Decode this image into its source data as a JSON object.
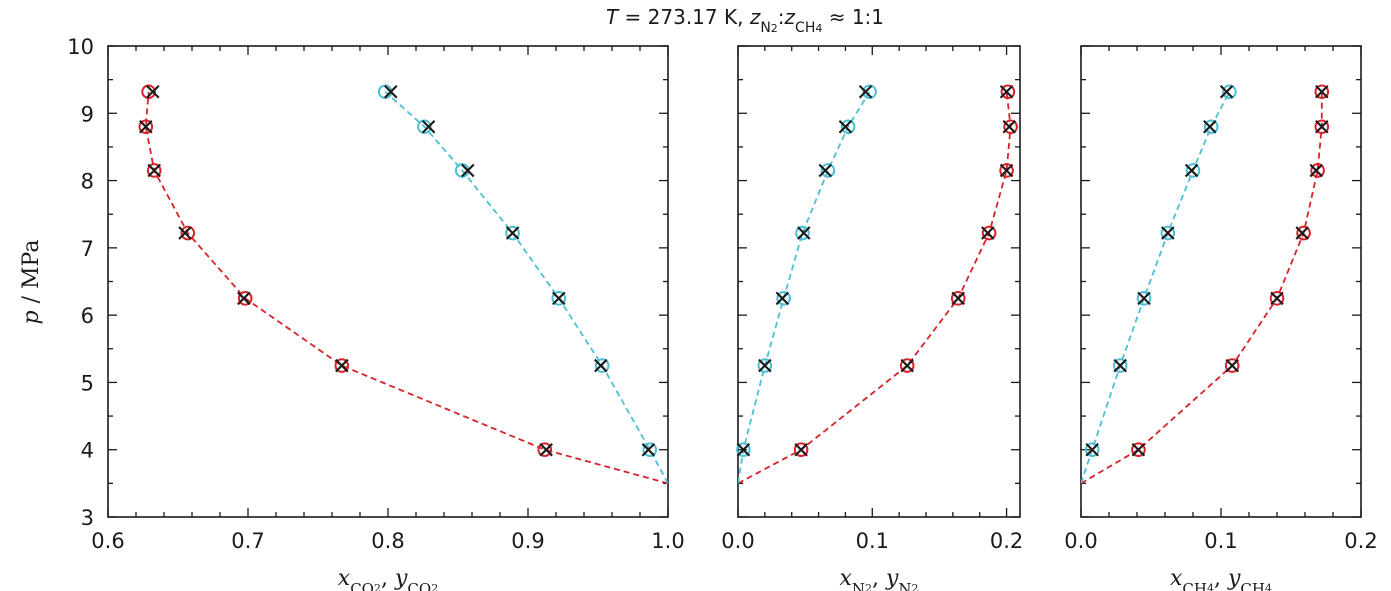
{
  "figure": {
    "title": {
      "T": "T",
      "eq": " = 273.17 K, ",
      "z": "z",
      "n2": "N",
      "n2sub": "2",
      "colon": ":",
      "z2": "z",
      "ch4": "CH",
      "ch4sub": "4",
      "approx": " ≈ 1:1"
    },
    "ylabel": {
      "p": "p",
      "unit": " / MPa"
    }
  },
  "colors": {
    "liquid": "#d6222a",
    "vapor": "#4bbfd4",
    "marker_x": "#1a1a1a"
  },
  "chart_data": [
    {
      "type": "line",
      "panel": "CO2",
      "xlabel": {
        "x": "x",
        "xsub": "CO",
        "xsub2": "2",
        "sep": ", ",
        "y": "y",
        "ysub": "CO",
        "ysub2": "2"
      },
      "xlim": [
        0.6,
        1.0
      ],
      "ylim": [
        3,
        10
      ],
      "xticks": [
        "0.6",
        "0.7",
        "0.8",
        "0.9",
        "1.0"
      ],
      "yticks": [
        "3",
        "4",
        "5",
        "6",
        "7",
        "8",
        "9",
        "10"
      ],
      "series": [
        {
          "role": "liquid",
          "line": [
            [
              1.0,
              3.5
            ],
            [
              0.912,
              4.0
            ],
            [
              0.767,
              5.25
            ],
            [
              0.698,
              6.25
            ],
            [
              0.657,
              7.22
            ],
            [
              0.633,
              8.15
            ],
            [
              0.627,
              8.8
            ],
            [
              0.629,
              9.32
            ]
          ],
          "circles": [
            [
              0.912,
              4.0
            ],
            [
              0.767,
              5.25
            ],
            [
              0.698,
              6.25
            ],
            [
              0.657,
              7.22
            ],
            [
              0.633,
              8.15
            ],
            [
              0.627,
              8.8
            ],
            [
              0.629,
              9.32
            ]
          ],
          "crosses": [
            [
              0.913,
              4.0
            ],
            [
              0.767,
              5.25
            ],
            [
              0.697,
              6.25
            ],
            [
              0.655,
              7.22
            ],
            [
              0.633,
              8.15
            ],
            [
              0.627,
              8.8
            ],
            [
              0.632,
              9.32
            ]
          ]
        },
        {
          "role": "vapor",
          "line": [
            [
              1.0,
              3.5
            ],
            [
              0.987,
              4.0
            ],
            [
              0.953,
              5.25
            ],
            [
              0.922,
              6.25
            ],
            [
              0.889,
              7.22
            ],
            [
              0.853,
              8.15
            ],
            [
              0.826,
              8.8
            ],
            [
              0.798,
              9.32
            ]
          ],
          "circles": [
            [
              0.987,
              4.0
            ],
            [
              0.953,
              5.25
            ],
            [
              0.922,
              6.25
            ],
            [
              0.889,
              7.22
            ],
            [
              0.853,
              8.15
            ],
            [
              0.826,
              8.8
            ],
            [
              0.798,
              9.32
            ]
          ],
          "crosses": [
            [
              0.986,
              4.0
            ],
            [
              0.952,
              5.25
            ],
            [
              0.922,
              6.25
            ],
            [
              0.889,
              7.22
            ],
            [
              0.857,
              8.15
            ],
            [
              0.829,
              8.8
            ],
            [
              0.802,
              9.32
            ]
          ]
        }
      ]
    },
    {
      "type": "line",
      "panel": "N2",
      "xlabel": {
        "x": "x",
        "xsub": "N",
        "xsub2": "2",
        "sep": ", ",
        "y": "y",
        "ysub": "N",
        "ysub2": "2"
      },
      "xlim": [
        0.0,
        0.21
      ],
      "ylim": [
        3,
        10
      ],
      "xticks": [
        "0.0",
        "0.1",
        "0.2"
      ],
      "xtickvals": [
        0.0,
        0.1,
        0.2
      ],
      "yticks": [],
      "series": [
        {
          "role": "liquid",
          "line": [
            [
              0.0,
              3.5
            ],
            [
              0.047,
              4.0
            ],
            [
              0.126,
              5.25
            ],
            [
              0.164,
              6.25
            ],
            [
              0.187,
              7.22
            ],
            [
              0.2,
              8.15
            ],
            [
              0.203,
              8.8
            ],
            [
              0.2,
              9.32
            ]
          ],
          "circles": [
            [
              0.047,
              4.0
            ],
            [
              0.126,
              5.25
            ],
            [
              0.164,
              6.25
            ],
            [
              0.187,
              7.22
            ],
            [
              0.2,
              8.15
            ],
            [
              0.203,
              8.8
            ],
            [
              0.201,
              9.32
            ]
          ],
          "crosses": [
            [
              0.047,
              4.0
            ],
            [
              0.126,
              5.25
            ],
            [
              0.164,
              6.25
            ],
            [
              0.186,
              7.22
            ],
            [
              0.2,
              8.15
            ],
            [
              0.202,
              8.8
            ],
            [
              0.2,
              9.32
            ]
          ]
        },
        {
          "role": "vapor",
          "line": [
            [
              0.0,
              3.5
            ],
            [
              0.004,
              4.0
            ],
            [
              0.02,
              5.25
            ],
            [
              0.034,
              6.25
            ],
            [
              0.048,
              7.22
            ],
            [
              0.067,
              8.15
            ],
            [
              0.082,
              8.8
            ],
            [
              0.098,
              9.32
            ]
          ],
          "circles": [
            [
              0.004,
              4.0
            ],
            [
              0.02,
              5.25
            ],
            [
              0.034,
              6.25
            ],
            [
              0.048,
              7.22
            ],
            [
              0.067,
              8.15
            ],
            [
              0.082,
              8.8
            ],
            [
              0.098,
              9.32
            ]
          ],
          "crosses": [
            [
              0.004,
              4.0
            ],
            [
              0.02,
              5.25
            ],
            [
              0.033,
              6.25
            ],
            [
              0.049,
              7.22
            ],
            [
              0.065,
              8.15
            ],
            [
              0.08,
              8.8
            ],
            [
              0.095,
              9.32
            ]
          ]
        }
      ]
    },
    {
      "type": "line",
      "panel": "CH4",
      "xlabel": {
        "x": "x",
        "xsub": "CH",
        "xsub2": "4",
        "sep": ", ",
        "y": "y",
        "ysub": "CH",
        "ysub2": "4"
      },
      "xlim": [
        0.0,
        0.2
      ],
      "ylim": [
        3,
        10
      ],
      "xticks": [
        "0.0",
        "0.1",
        "0.2"
      ],
      "xtickvals": [
        0.0,
        0.1,
        0.2
      ],
      "yticks": [],
      "series": [
        {
          "role": "liquid",
          "line": [
            [
              0.0,
              3.5
            ],
            [
              0.041,
              4.0
            ],
            [
              0.108,
              5.25
            ],
            [
              0.14,
              6.25
            ],
            [
              0.159,
              7.22
            ],
            [
              0.169,
              8.15
            ],
            [
              0.172,
              8.8
            ],
            [
              0.172,
              9.32
            ]
          ],
          "circles": [
            [
              0.041,
              4.0
            ],
            [
              0.108,
              5.25
            ],
            [
              0.14,
              6.25
            ],
            [
              0.159,
              7.22
            ],
            [
              0.169,
              8.15
            ],
            [
              0.172,
              8.8
            ],
            [
              0.172,
              9.32
            ]
          ],
          "crosses": [
            [
              0.041,
              4.0
            ],
            [
              0.108,
              5.25
            ],
            [
              0.14,
              6.25
            ],
            [
              0.158,
              7.22
            ],
            [
              0.168,
              8.15
            ],
            [
              0.172,
              8.8
            ],
            [
              0.172,
              9.32
            ]
          ]
        },
        {
          "role": "vapor",
          "line": [
            [
              0.0,
              3.5
            ],
            [
              0.008,
              4.0
            ],
            [
              0.028,
              5.25
            ],
            [
              0.045,
              6.25
            ],
            [
              0.062,
              7.22
            ],
            [
              0.08,
              8.15
            ],
            [
              0.093,
              8.8
            ],
            [
              0.106,
              9.32
            ]
          ],
          "circles": [
            [
              0.008,
              4.0
            ],
            [
              0.028,
              5.25
            ],
            [
              0.045,
              6.25
            ],
            [
              0.062,
              7.22
            ],
            [
              0.08,
              8.15
            ],
            [
              0.093,
              8.8
            ],
            [
              0.106,
              9.32
            ]
          ],
          "crosses": [
            [
              0.008,
              4.0
            ],
            [
              0.028,
              5.25
            ],
            [
              0.045,
              6.25
            ],
            [
              0.062,
              7.22
            ],
            [
              0.079,
              8.15
            ],
            [
              0.092,
              8.8
            ],
            [
              0.104,
              9.32
            ]
          ]
        }
      ]
    }
  ]
}
